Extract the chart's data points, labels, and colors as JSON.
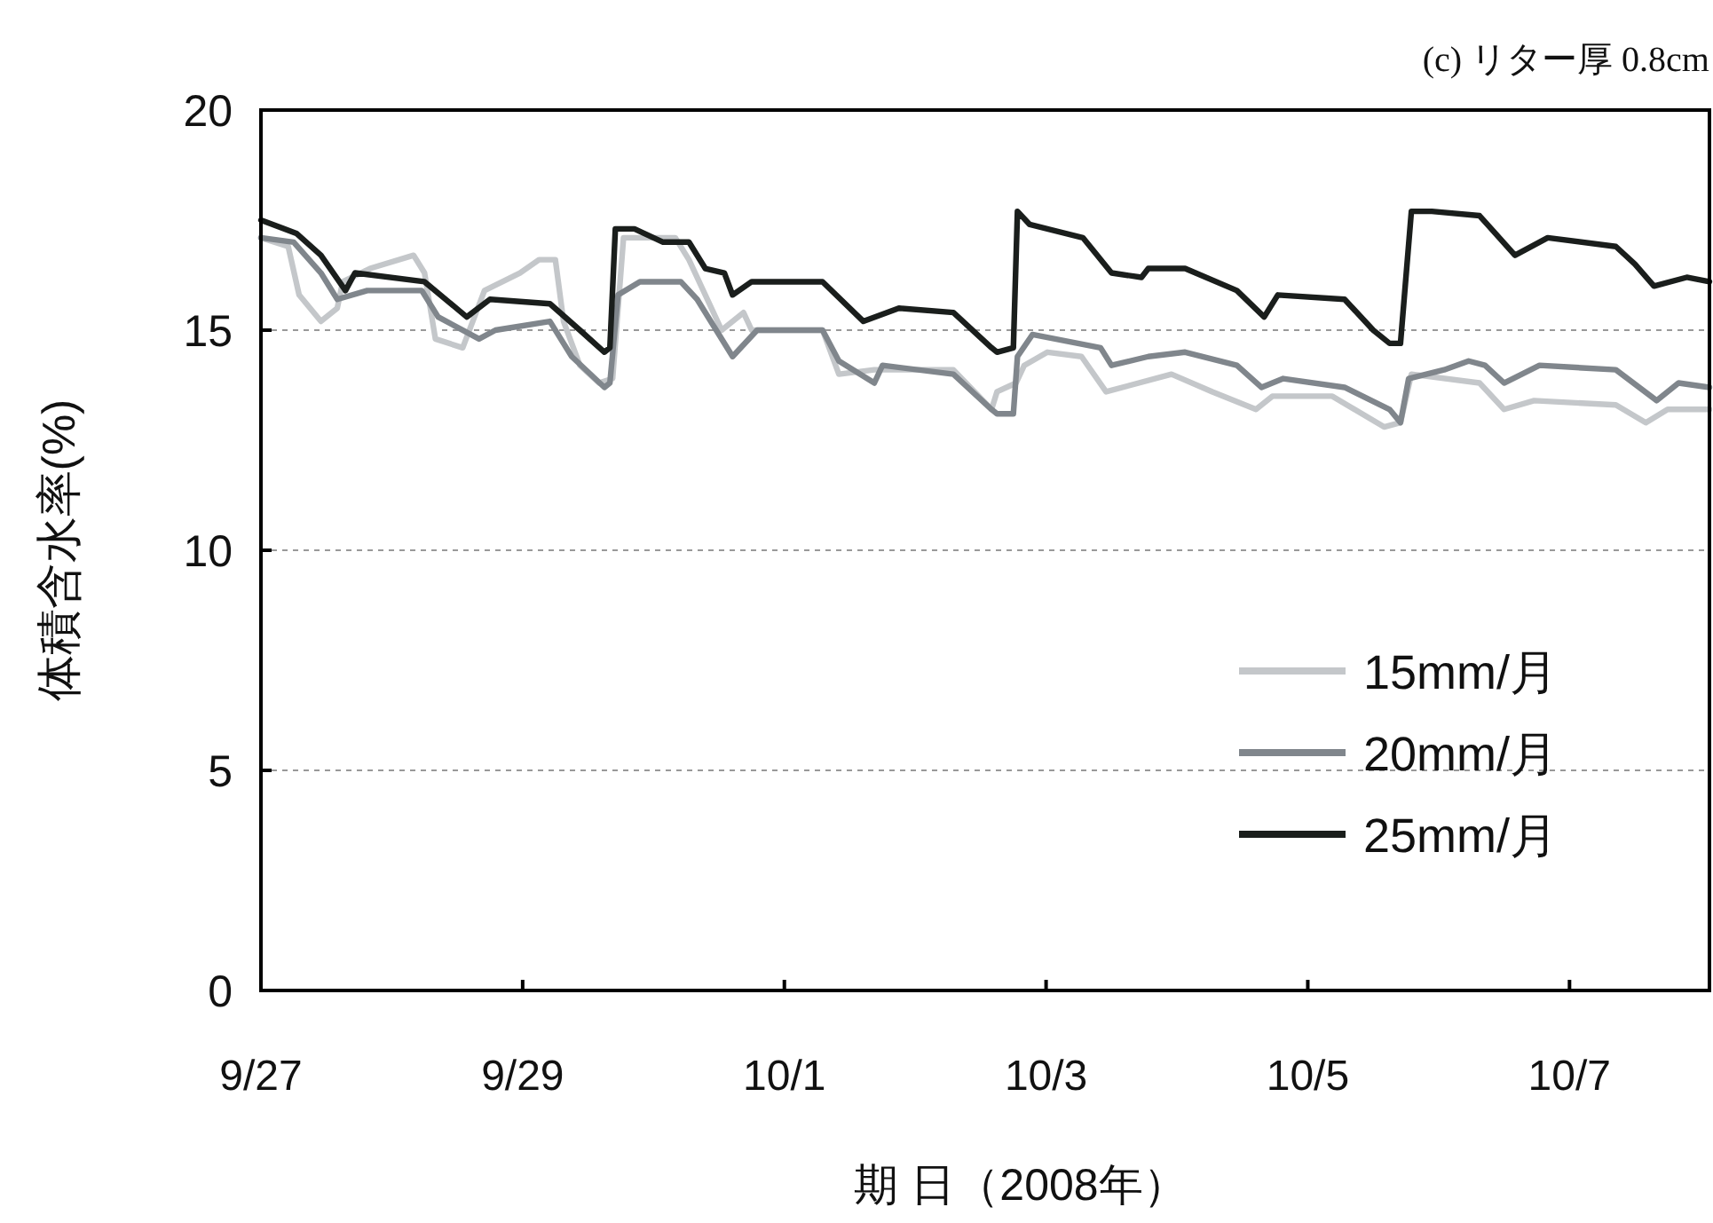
{
  "chart_data": {
    "type": "line",
    "title": "(c) リター厚 0.8cm",
    "xlabel": "期 日（2008年）",
    "ylabel": "体積含水率(%)",
    "xlim": [
      "2008-09-27T00:00",
      "2008-10-08T01:40"
    ],
    "xticks": [
      {
        "value": "2008-09-27",
        "label": "9/27"
      },
      {
        "value": "2008-09-29",
        "label": "9/29"
      },
      {
        "value": "2008-10-01",
        "label": "10/1"
      },
      {
        "value": "2008-10-03",
        "label": "10/3"
      },
      {
        "value": "2008-10-05",
        "label": "10/5"
      },
      {
        "value": "2008-10-07",
        "label": "10/7"
      }
    ],
    "ylim": [
      0,
      20
    ],
    "yticks": [
      0,
      5,
      10,
      15,
      20
    ],
    "grid": "y",
    "legend": "bottom right",
    "series": [
      {
        "name": "15mm/月",
        "color": "#c4c7ca",
        "x": [
          "2008-09-27T00:00",
          "2008-09-27T05:00",
          "2008-09-27T07:00",
          "2008-09-27T11:00",
          "2008-09-27T14:00",
          "2008-09-27T15:00",
          "2008-09-27T20:00",
          "2008-09-28T04:00",
          "2008-09-28T06:00",
          "2008-09-28T08:00",
          "2008-09-28T13:00",
          "2008-09-28T17:00",
          "2008-09-28T23:30",
          "2008-09-29T03:00",
          "2008-09-29T06:00",
          "2008-09-29T07:30",
          "2008-09-29T10:30",
          "2008-09-29T14:00",
          "2008-09-29T16:30",
          "2008-09-29T18:30",
          "2008-09-30T04:00",
          "2008-09-30T06:30",
          "2008-09-30T12:30",
          "2008-09-30T16:30",
          "2008-09-30T18:00",
          "2008-10-01T07:00",
          "2008-10-01T10:00",
          "2008-10-01T16:30",
          "2008-10-02T07:00",
          "2008-10-02T14:00",
          "2008-10-02T15:00",
          "2008-10-02T18:30",
          "2008-10-02T20:00",
          "2008-10-03T00:15",
          "2008-10-03T06:30",
          "2008-10-03T11:00",
          "2008-10-03T23:00",
          "2008-10-04T06:30",
          "2008-10-04T14:30",
          "2008-10-04T17:30",
          "2008-10-05T04:30",
          "2008-10-05T14:00",
          "2008-10-05T17:00",
          "2008-10-05T19:00",
          "2008-10-06T07:30",
          "2008-10-06T12:00",
          "2008-10-06T17:30",
          "2008-10-07T08:30",
          "2008-10-07T14:00",
          "2008-10-07T18:00",
          "2008-10-08T01:40"
        ],
        "values": [
          17.1,
          16.9,
          15.8,
          15.2,
          15.5,
          16.1,
          16.4,
          16.7,
          16.3,
          14.8,
          14.6,
          15.9,
          16.3,
          16.6,
          16.6,
          15.2,
          14.2,
          13.8,
          13.9,
          17.1,
          17.1,
          16.6,
          15.0,
          15.4,
          15.0,
          15.0,
          14.0,
          14.1,
          14.1,
          13.2,
          13.6,
          13.8,
          14.2,
          14.5,
          14.4,
          13.6,
          14.0,
          13.6,
          13.2,
          13.5,
          13.5,
          12.8,
          12.9,
          14.0,
          13.8,
          13.2,
          13.4,
          13.3,
          12.9,
          13.2,
          13.2
        ]
      },
      {
        "name": "20mm/月",
        "color": "#80868c",
        "x": [
          "2008-09-27T00:00",
          "2008-09-27T06:00",
          "2008-09-27T11:00",
          "2008-09-27T14:00",
          "2008-09-27T19:30",
          "2008-09-28T05:30",
          "2008-09-28T08:30",
          "2008-09-28T16:00",
          "2008-09-28T19:00",
          "2008-09-29T05:00",
          "2008-09-29T09:00",
          "2008-09-29T15:00",
          "2008-09-29T16:00",
          "2008-09-29T17:30",
          "2008-09-29T21:30",
          "2008-09-30T05:00",
          "2008-09-30T08:00",
          "2008-09-30T14:30",
          "2008-09-30T19:00",
          "2008-10-01T07:00",
          "2008-10-01T10:00",
          "2008-10-01T16:30",
          "2008-10-01T18:00",
          "2008-10-02T07:00",
          "2008-10-02T14:00",
          "2008-10-02T15:00",
          "2008-10-02T18:00",
          "2008-10-02T18:45",
          "2008-10-02T21:30",
          "2008-10-03T10:00",
          "2008-10-03T12:00",
          "2008-10-03T18:45",
          "2008-10-04T01:30",
          "2008-10-04T11:00",
          "2008-10-04T15:30",
          "2008-10-04T19:30",
          "2008-10-05T06:45",
          "2008-10-05T15:00",
          "2008-10-05T17:00",
          "2008-10-05T18:30",
          "2008-10-06T01:00",
          "2008-10-06T05:30",
          "2008-10-06T08:30",
          "2008-10-06T12:00",
          "2008-10-06T18:30",
          "2008-10-07T08:30",
          "2008-10-07T16:00",
          "2008-10-07T20:00",
          "2008-10-08T01:40"
        ],
        "values": [
          17.1,
          17.0,
          16.3,
          15.7,
          15.9,
          15.9,
          15.3,
          14.8,
          15.0,
          15.2,
          14.4,
          13.7,
          13.8,
          15.8,
          16.1,
          16.1,
          15.7,
          14.4,
          15.0,
          15.0,
          14.3,
          13.8,
          14.2,
          14.0,
          13.2,
          13.1,
          13.1,
          14.4,
          14.9,
          14.6,
          14.2,
          14.4,
          14.5,
          14.2,
          13.7,
          13.9,
          13.7,
          13.2,
          12.9,
          13.9,
          14.1,
          14.3,
          14.2,
          13.8,
          14.2,
          14.1,
          13.4,
          13.8,
          13.7
        ]
      },
      {
        "name": "25mm/月",
        "color": "#1a1e1c",
        "x": [
          "2008-09-27T00:00",
          "2008-09-27T06:30",
          "2008-09-27T11:00",
          "2008-09-27T15:30",
          "2008-09-27T17:15",
          "2008-09-28T06:00",
          "2008-09-28T13:45",
          "2008-09-28T18:00",
          "2008-09-29T05:00",
          "2008-09-29T10:30",
          "2008-09-29T15:00",
          "2008-09-29T16:00",
          "2008-09-29T17:00",
          "2008-09-29T20:30",
          "2008-09-30T01:45",
          "2008-09-30T06:30",
          "2008-09-30T09:30",
          "2008-09-30T13:00",
          "2008-09-30T14:30",
          "2008-09-30T18:00",
          "2008-10-01T07:00",
          "2008-10-01T14:30",
          "2008-10-01T21:00",
          "2008-10-02T07:00",
          "2008-10-02T14:00",
          "2008-10-02T15:00",
          "2008-10-02T18:00",
          "2008-10-02T18:45",
          "2008-10-02T21:00",
          "2008-10-03T06:45",
          "2008-10-03T12:00",
          "2008-10-03T17:30",
          "2008-10-03T18:45",
          "2008-10-04T01:30",
          "2008-10-04T11:00",
          "2008-10-04T16:00",
          "2008-10-04T18:30",
          "2008-10-05T06:45",
          "2008-10-05T12:00",
          "2008-10-05T15:00",
          "2008-10-05T17:00",
          "2008-10-05T19:00",
          "2008-10-05T22:45",
          "2008-10-06T07:30",
          "2008-10-06T14:00",
          "2008-10-06T20:00",
          "2008-10-07T08:30",
          "2008-10-07T12:00",
          "2008-10-07T15:30",
          "2008-10-07T21:30",
          "2008-10-08T01:40"
        ],
        "values": [
          17.5,
          17.2,
          16.7,
          15.9,
          16.3,
          16.1,
          15.3,
          15.7,
          15.6,
          15.0,
          14.5,
          14.6,
          17.3,
          17.3,
          17.0,
          17.0,
          16.4,
          16.3,
          15.8,
          16.1,
          16.1,
          15.2,
          15.5,
          15.4,
          14.6,
          14.5,
          14.6,
          17.7,
          17.4,
          17.1,
          16.3,
          16.2,
          16.4,
          16.4,
          15.9,
          15.3,
          15.8,
          15.7,
          15.0,
          14.7,
          14.7,
          17.7,
          17.7,
          17.6,
          16.7,
          17.1,
          16.9,
          16.5,
          16.0,
          16.2,
          16.1
        ]
      }
    ]
  }
}
